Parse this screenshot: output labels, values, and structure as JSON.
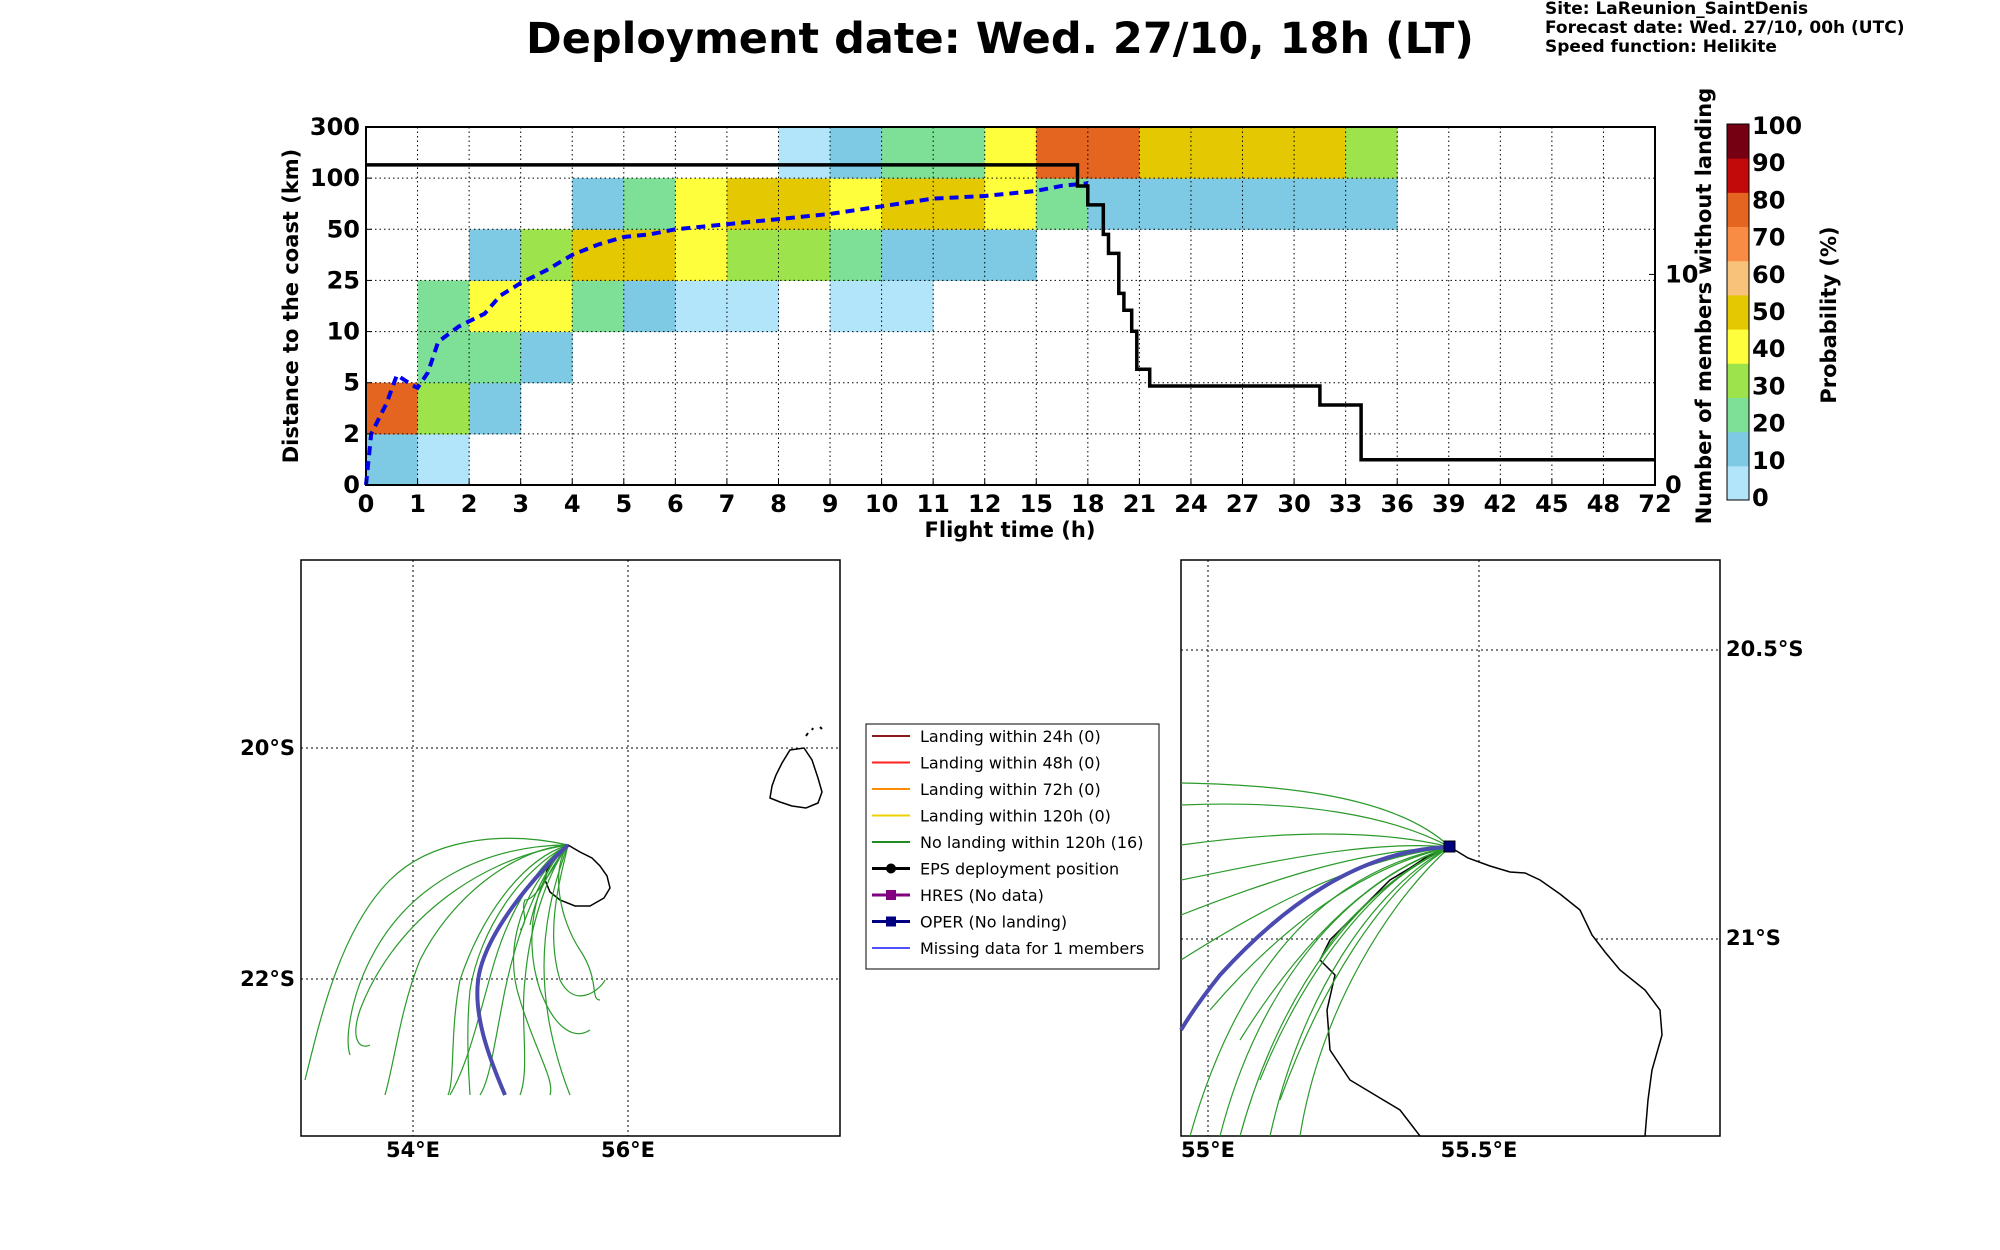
{
  "title": "Deployment date: Wed. 27/10, 18h (LT)",
  "info": {
    "site": "Site: LaReunion_SaintDenis",
    "forecast": "Forecast date: Wed. 27/10, 00h (UTC)",
    "speed": "Speed function: Helikite"
  },
  "chart_data": {
    "type": "heatmap",
    "xlabel": "Flight time (h)",
    "ylabel": "Distance to the coast (km)",
    "y2label": "Number of members without landing",
    "x_ticks": [
      "0",
      "1",
      "2",
      "3",
      "4",
      "5",
      "6",
      "7",
      "8",
      "9",
      "10",
      "11",
      "12",
      "15",
      "18",
      "21",
      "24",
      "27",
      "30",
      "33",
      "36",
      "39",
      "42",
      "45",
      "48",
      "72"
    ],
    "y_ticks": [
      "0",
      "2",
      "5",
      "10",
      "25",
      "50",
      "100",
      "300"
    ],
    "y2_ticks": [
      "0",
      "10"
    ],
    "y2_range": [
      0,
      17
    ],
    "colorbar": {
      "label": "Probability (%)",
      "ticks": [
        "0",
        "10",
        "20",
        "30",
        "40",
        "50",
        "60",
        "70",
        "80",
        "90",
        "100"
      ],
      "colors": [
        "#b3e5fa",
        "#7ecae4",
        "#7edf96",
        "#9ce34c",
        "#fffe3c",
        "#e4c902",
        "#f9c27b",
        "#f98c45",
        "#e3651f",
        "#c20a0a",
        "#750012"
      ]
    },
    "cells": [
      {
        "xi": 0,
        "yi": 0,
        "bin": 1
      },
      {
        "xi": 1,
        "yi": 0,
        "bin": 0
      },
      {
        "xi": 0,
        "yi": 1,
        "bin": 8
      },
      {
        "xi": 1,
        "yi": 1,
        "bin": 3
      },
      {
        "xi": 2,
        "yi": 1,
        "bin": 1
      },
      {
        "xi": 1,
        "yi": 2,
        "bin": 2
      },
      {
        "xi": 2,
        "yi": 2,
        "bin": 2
      },
      {
        "xi": 3,
        "yi": 2,
        "bin": 1
      },
      {
        "xi": 1,
        "yi": 3,
        "bin": 2
      },
      {
        "xi": 2,
        "yi": 3,
        "bin": 4
      },
      {
        "xi": 3,
        "yi": 3,
        "bin": 4
      },
      {
        "xi": 4,
        "yi": 3,
        "bin": 2
      },
      {
        "xi": 5,
        "yi": 3,
        "bin": 1
      },
      {
        "xi": 6,
        "yi": 3,
        "bin": 0
      },
      {
        "xi": 7,
        "yi": 3,
        "bin": 0
      },
      {
        "xi": 9,
        "yi": 3,
        "bin": 0
      },
      {
        "xi": 10,
        "yi": 3,
        "bin": 0
      },
      {
        "xi": 2,
        "yi": 4,
        "bin": 1
      },
      {
        "xi": 3,
        "yi": 4,
        "bin": 3
      },
      {
        "xi": 4,
        "yi": 4,
        "bin": 5
      },
      {
        "xi": 5,
        "yi": 4,
        "bin": 5
      },
      {
        "xi": 6,
        "yi": 4,
        "bin": 4
      },
      {
        "xi": 7,
        "yi": 4,
        "bin": 3
      },
      {
        "xi": 8,
        "yi": 4,
        "bin": 3
      },
      {
        "xi": 9,
        "yi": 4,
        "bin": 2
      },
      {
        "xi": 10,
        "yi": 4,
        "bin": 1
      },
      {
        "xi": 11,
        "yi": 4,
        "bin": 1
      },
      {
        "xi": 12,
        "yi": 4,
        "bin": 1
      },
      {
        "xi": 4,
        "yi": 5,
        "bin": 1
      },
      {
        "xi": 5,
        "yi": 5,
        "bin": 2
      },
      {
        "xi": 6,
        "yi": 5,
        "bin": 4
      },
      {
        "xi": 7,
        "yi": 5,
        "bin": 5
      },
      {
        "xi": 8,
        "yi": 5,
        "bin": 5
      },
      {
        "xi": 9,
        "yi": 5,
        "bin": 4
      },
      {
        "xi": 10,
        "yi": 5,
        "bin": 5
      },
      {
        "xi": 11,
        "yi": 5,
        "bin": 5
      },
      {
        "xi": 12,
        "yi": 5,
        "bin": 4
      },
      {
        "xi": 13,
        "yi": 5,
        "bin": 2
      },
      {
        "xi": 14,
        "yi": 5,
        "bin": 1
      },
      {
        "xi": 15,
        "yi": 5,
        "bin": 1
      },
      {
        "xi": 16,
        "yi": 5,
        "bin": 1
      },
      {
        "xi": 17,
        "yi": 5,
        "bin": 1
      },
      {
        "xi": 18,
        "yi": 5,
        "bin": 1
      },
      {
        "xi": 19,
        "yi": 5,
        "bin": 1
      },
      {
        "xi": 8,
        "yi": 6,
        "bin": 0
      },
      {
        "xi": 9,
        "yi": 6,
        "bin": 1
      },
      {
        "xi": 10,
        "yi": 6,
        "bin": 2
      },
      {
        "xi": 11,
        "yi": 6,
        "bin": 2
      },
      {
        "xi": 12,
        "yi": 6,
        "bin": 4
      },
      {
        "xi": 13,
        "yi": 6,
        "bin": 8
      },
      {
        "xi": 14,
        "yi": 6,
        "bin": 8
      },
      {
        "xi": 15,
        "yi": 6,
        "bin": 5
      },
      {
        "xi": 16,
        "yi": 6,
        "bin": 5
      },
      {
        "xi": 17,
        "yi": 6,
        "bin": 5
      },
      {
        "xi": 18,
        "yi": 6,
        "bin": 5
      },
      {
        "xi": 19,
        "yi": 6,
        "bin": 3
      }
    ],
    "series": [
      {
        "name": "median distance",
        "style": "dashed",
        "color": "#0000ee",
        "points": [
          [
            0,
            0
          ],
          [
            0.1,
            1.0
          ],
          [
            0.4,
            1.6
          ],
          [
            0.6,
            2.15
          ],
          [
            0.9,
            1.95
          ],
          [
            1.0,
            1.9
          ],
          [
            1.2,
            2.2
          ],
          [
            1.4,
            2.8
          ],
          [
            1.6,
            2.95
          ],
          [
            1.8,
            3.1
          ],
          [
            2.0,
            3.2
          ],
          [
            2.3,
            3.35
          ],
          [
            2.6,
            3.7
          ],
          [
            3.0,
            3.95
          ],
          [
            3.5,
            4.2
          ],
          [
            4.0,
            4.5
          ],
          [
            4.5,
            4.7
          ],
          [
            5.0,
            4.85
          ],
          [
            5.5,
            4.9
          ],
          [
            6.0,
            5.0
          ],
          [
            7.0,
            5.1
          ],
          [
            8.0,
            5.2
          ],
          [
            9.0,
            5.3
          ],
          [
            10.0,
            5.45
          ],
          [
            11.0,
            5.6
          ],
          [
            12.0,
            5.65
          ],
          [
            13.0,
            5.75
          ],
          [
            13.5,
            5.85
          ],
          [
            14.0,
            5.9
          ]
        ]
      },
      {
        "name": "members without landing",
        "style": "solid",
        "color": "#000000",
        "points": [
          [
            0,
            15.2
          ],
          [
            13.8,
            15.2
          ],
          [
            13.8,
            14.2
          ],
          [
            14.0,
            14.2
          ],
          [
            14.0,
            13.3
          ],
          [
            14.3,
            13.3
          ],
          [
            14.3,
            11.9
          ],
          [
            14.4,
            11.9
          ],
          [
            14.4,
            11.0
          ],
          [
            14.6,
            11.0
          ],
          [
            14.6,
            9.1
          ],
          [
            14.7,
            9.1
          ],
          [
            14.7,
            8.3
          ],
          [
            14.85,
            8.3
          ],
          [
            14.85,
            7.3
          ],
          [
            14.95,
            7.3
          ],
          [
            14.95,
            5.5
          ],
          [
            15.2,
            5.5
          ],
          [
            15.2,
            4.7
          ],
          [
            18.5,
            4.7
          ],
          [
            18.5,
            3.8
          ],
          [
            19.3,
            3.8
          ],
          [
            19.3,
            1.2
          ],
          [
            25,
            1.2
          ]
        ]
      }
    ]
  },
  "legend": [
    {
      "label": "Landing within 24h (0)",
      "color": "#8b1a1a",
      "marker": "none"
    },
    {
      "label": "Landing within 48h (0)",
      "color": "#ff2020",
      "marker": "none"
    },
    {
      "label": "Landing within 72h (0)",
      "color": "#ff8c00",
      "marker": "none"
    },
    {
      "label": "Landing within 120h (0)",
      "color": "#f0d000",
      "marker": "none"
    },
    {
      "label": "No landing within 120h (16)",
      "color": "#228b22",
      "marker": "none"
    },
    {
      "label": "EPS deployment position",
      "color": "#000000",
      "marker": "circle"
    },
    {
      "label": "HRES (No data)",
      "color": "#800080",
      "marker": "square"
    },
    {
      "label": "OPER (No landing)",
      "color": "#000080",
      "marker": "square"
    },
    {
      "label": "Missing data for 1 members",
      "color": "#5050ff",
      "marker": "none"
    }
  ],
  "map_left": {
    "lon_ticks": [
      "54°E",
      "56°E"
    ],
    "lat_ticks": [
      "20°S",
      "22°S"
    ]
  },
  "map_right": {
    "lon_ticks": [
      "55°E",
      "55.5°E"
    ],
    "lat_ticks": [
      "20.5°S",
      "21°S"
    ]
  }
}
